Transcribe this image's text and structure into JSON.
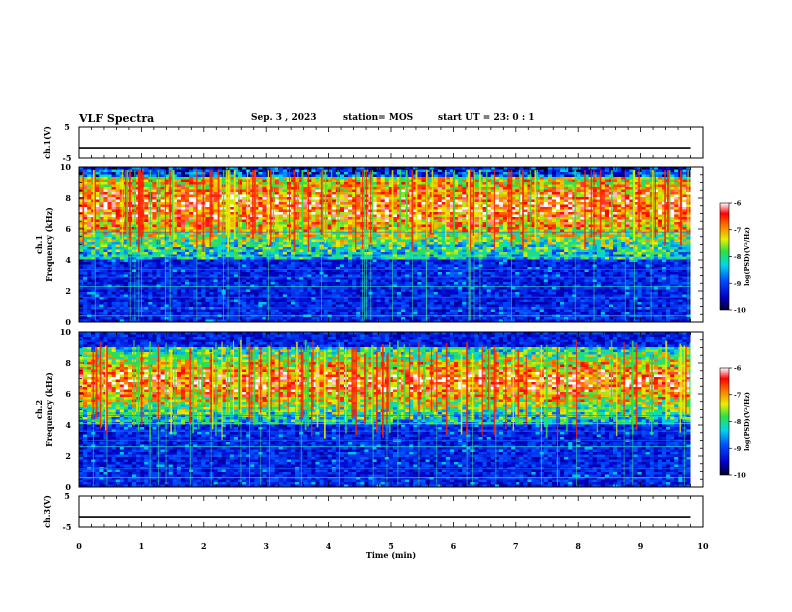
{
  "header": {
    "title": "VLF Spectra",
    "date": "Sep. 3  , 2023",
    "station": "station= MOS",
    "start_ut": "start  UT =   23: 0  : 1"
  },
  "chart_data": [
    {
      "type": "line",
      "panel": "ch1_waveform",
      "ylabel": "ch.1(V)",
      "ylim": [
        -5,
        5
      ],
      "yticks": [
        5,
        -5
      ],
      "x": [
        0,
        9.8
      ],
      "values": [
        -1.8,
        -1.8
      ]
    },
    {
      "type": "heatmap",
      "panel": "ch1_spectrogram",
      "ylabel": "ch.1\nFrequency (kHz)",
      "ylim": [
        0,
        10
      ],
      "yticks": [
        0,
        2,
        4,
        6,
        8,
        10
      ],
      "xlim": [
        0,
        10
      ],
      "data_extent_x": [
        0,
        9.8
      ],
      "emission_band_khz": [
        4,
        10
      ],
      "colorbar": {
        "label": "log(PSD)(V²/Hz)",
        "range": [
          -10,
          -6
        ],
        "ticks": [
          "-6",
          "-7",
          "-8",
          "-9",
          "-10"
        ]
      }
    },
    {
      "type": "heatmap",
      "panel": "ch2_spectrogram",
      "ylabel": "ch.2\nFrequency (kHz)",
      "ylim": [
        0,
        10
      ],
      "yticks": [
        0,
        2,
        4,
        6,
        8,
        10
      ],
      "xlim": [
        0,
        10
      ],
      "data_extent_x": [
        0,
        9.8
      ],
      "emission_band_khz": [
        4,
        9
      ],
      "colorbar": {
        "label": "log(PSD)(V²/Hz)",
        "range": [
          -10,
          -6
        ],
        "ticks": [
          "-6",
          "-7",
          "-8",
          "-9",
          "-10"
        ]
      }
    },
    {
      "type": "line",
      "panel": "ch3_waveform",
      "ylabel": "ch.3(V)",
      "ylim": [
        -5,
        5
      ],
      "yticks": [
        5,
        -5
      ],
      "x": [
        0,
        9.8
      ],
      "values": [
        -1.8,
        -1.8
      ],
      "xlabel": "Time  (min)",
      "xticks": [
        "0",
        "1",
        "2",
        "3",
        "4",
        "5",
        "6",
        "7",
        "8",
        "9",
        "10"
      ]
    }
  ]
}
